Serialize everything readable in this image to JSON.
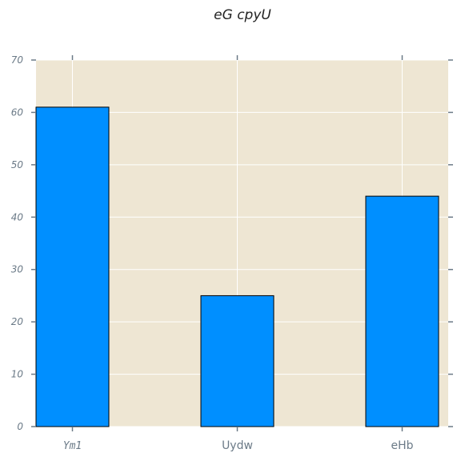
{
  "chart_data": {
    "type": "bar",
    "title": "eG  cpyU",
    "categories": [
      "Ym1",
      "Uydw",
      "eHb"
    ],
    "values": [
      61,
      25,
      44
    ],
    "ylim": [
      0,
      70
    ],
    "yticks": [
      0,
      10,
      20,
      30,
      40,
      50,
      60,
      70
    ],
    "xlabel": "",
    "ylabel": "",
    "grid": true,
    "colors": {
      "plot_background": "#eee6d3",
      "bar_fill": "#008fff",
      "bar_edge": "#000000",
      "grid": "#ffffff",
      "tick": "#6b7a87"
    }
  }
}
